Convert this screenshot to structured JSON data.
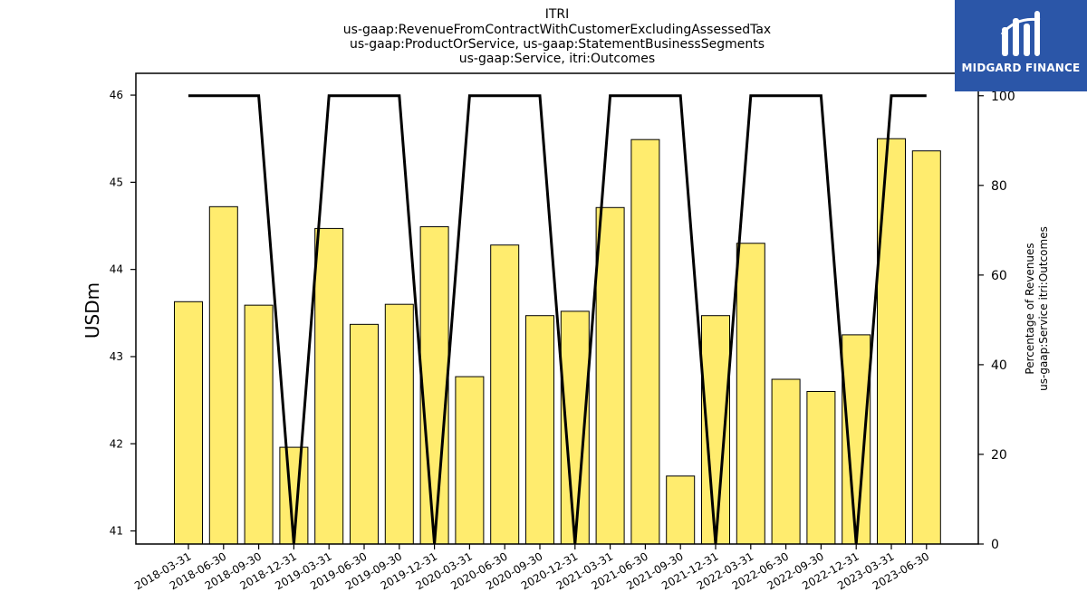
{
  "chart_data": {
    "type": "bar",
    "title_lines": [
      "ITRI",
      "us-gaap:RevenueFromContractWithCustomerExcludingAssessedTax",
      "us-gaap:ProductOrService, us-gaap:StatementBusinessSegments",
      "us-gaap:Service, itri:Outcomes"
    ],
    "ylabel": "USDm",
    "y2label_lines": [
      "Percentage of Revenues",
      "us-gaap:Service itri:Outcomes"
    ],
    "categories": [
      "2018-03-31",
      "2018-06-30",
      "2018-09-30",
      "2018-12-31",
      "2019-03-31",
      "2019-06-30",
      "2019-09-30",
      "2019-12-31",
      "2020-03-31",
      "2020-06-30",
      "2020-09-30",
      "2020-12-31",
      "2021-03-31",
      "2021-06-30",
      "2021-09-30",
      "2021-12-31",
      "2022-03-31",
      "2022-06-30",
      "2022-09-30",
      "2022-12-31",
      "2023-03-31",
      "2023-06-30"
    ],
    "series": [
      {
        "values": [
          43.63,
          44.72,
          43.59,
          41.96,
          44.47,
          43.37,
          43.6,
          44.49,
          42.77,
          44.28,
          43.47,
          43.52,
          44.71,
          45.49,
          41.63,
          43.47,
          44.3,
          42.74,
          42.6,
          43.25,
          45.5,
          45.36
        ],
        "axis": "left",
        "color": "#ffec6e"
      },
      {
        "values": [
          100,
          100,
          100,
          0,
          100,
          100,
          100,
          0,
          100,
          100,
          100,
          0,
          100,
          100,
          100,
          0,
          100,
          100,
          100,
          0,
          100,
          100
        ],
        "axis": "right",
        "type": "line",
        "color": "#000000"
      }
    ],
    "ylim": [
      40.85,
      46.25
    ],
    "y2lim": [
      0,
      105
    ],
    "yticks": [
      "41",
      "42",
      "43",
      "44",
      "45",
      "46"
    ],
    "y2ticks": [
      "0",
      "20",
      "40",
      "60",
      "80",
      "100"
    ],
    "grid": false
  },
  "logo": {
    "text": "MIDGARD FINANCE",
    "background": "#2b56a8"
  }
}
